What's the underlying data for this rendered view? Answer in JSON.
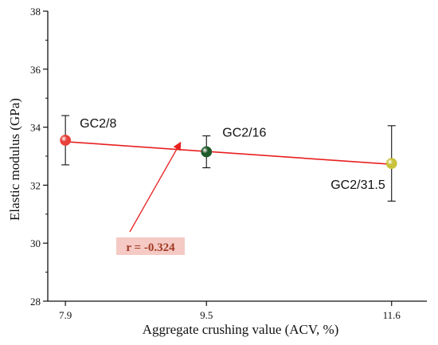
{
  "chart_data": {
    "type": "scatter",
    "x_label": "Aggregate crushing value (ACV, %)",
    "y_label": "Elastic modulus (GPa)",
    "xlim": [
      7.7,
      12.0
    ],
    "ylim": [
      28,
      38
    ],
    "x_ticks": [
      7.9,
      9.5,
      11.6
    ],
    "x_tick_labels": [
      "7.9",
      "9.5",
      "11.6"
    ],
    "y_ticks": [
      28,
      30,
      32,
      34,
      36,
      38
    ],
    "y_tick_labels": [
      "28",
      "30",
      "32",
      "34",
      "36",
      "38"
    ],
    "points": [
      {
        "label": "GC2/8",
        "x": 7.9,
        "y": 33.55,
        "err_low": 32.7,
        "err_high": 34.4,
        "color": "#e8403a"
      },
      {
        "label": "GC2/16",
        "x": 9.5,
        "y": 33.15,
        "err_low": 32.6,
        "err_high": 33.7,
        "color": "#1f5a2a"
      },
      {
        "label": "GC2/31.5",
        "x": 11.6,
        "y": 32.75,
        "err_low": 31.45,
        "err_high": 34.05,
        "color": "#c8c23a"
      }
    ],
    "fit_line": {
      "x": [
        7.9,
        11.6
      ],
      "y": [
        33.5,
        32.72
      ],
      "color": "#e82020"
    },
    "annotation": {
      "text": "r = -0.324",
      "color": "#a03a22",
      "box_color": "#f5c9c4",
      "arrow_color": "#e82020"
    }
  }
}
